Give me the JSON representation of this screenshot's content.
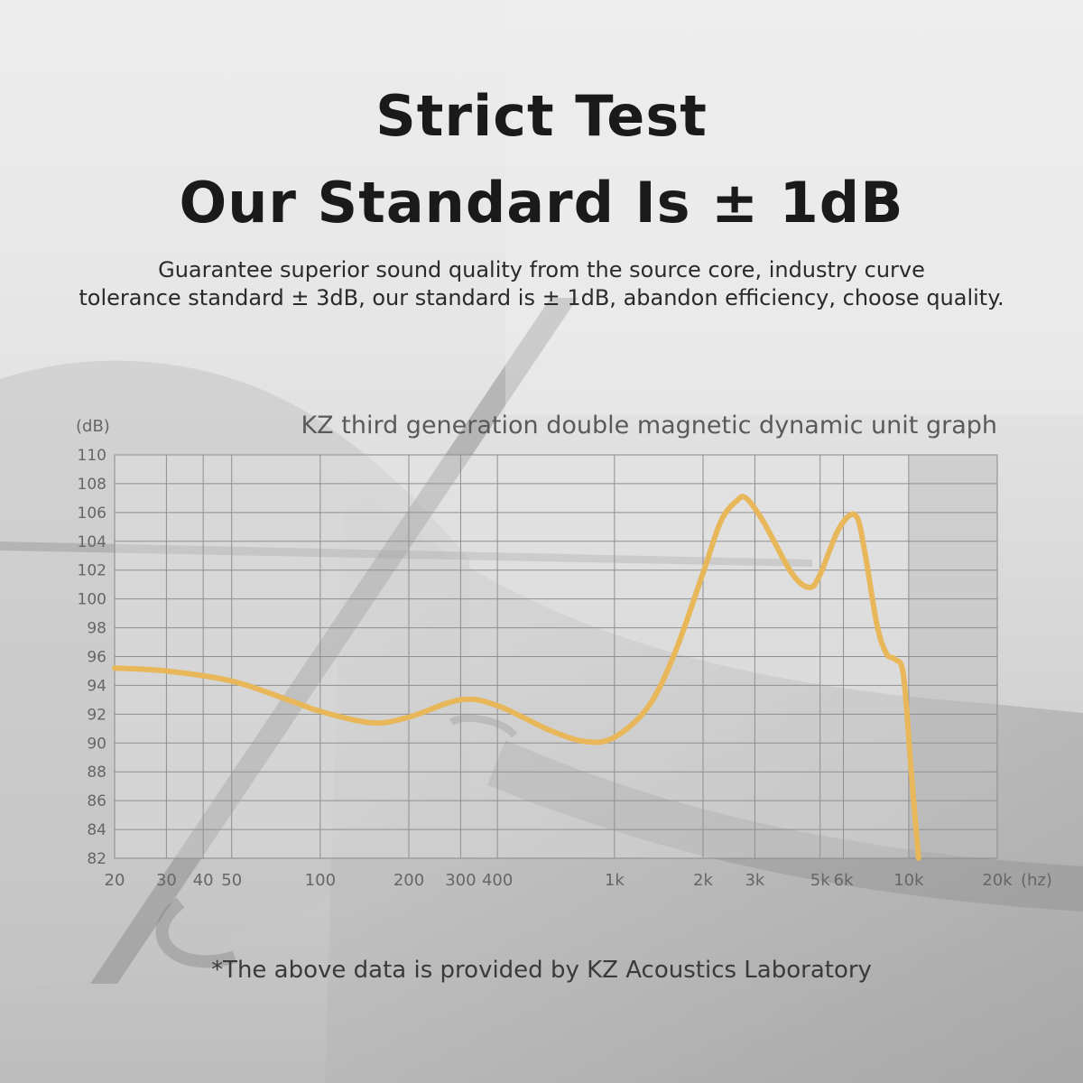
{
  "header": {
    "title_line1": "Strict Test",
    "title_line2": "Our Standard Is ± 1dB",
    "subtitle_line1": "Guarantee superior sound quality from the source core, industry curve",
    "subtitle_line2": "tolerance standard ± 3dB, our standard is ± 1dB, abandon efficiency, choose quality."
  },
  "footnote": "*The above data is provided by KZ Acoustics Laboratory",
  "chart_data": {
    "type": "line",
    "title": "KZ third generation double magnetic dynamic unit graph",
    "y_unit_label": "(dB)",
    "x_unit_label": "(hz)",
    "x_scale": "log",
    "xlim": [
      20,
      20000
    ],
    "ylim": [
      82,
      110
    ],
    "y_ticks": [
      82,
      84,
      86,
      88,
      90,
      92,
      94,
      96,
      98,
      100,
      102,
      104,
      106,
      108,
      110
    ],
    "x_ticks": [
      {
        "value": 20,
        "label": "20"
      },
      {
        "value": 30,
        "label": "30"
      },
      {
        "value": 40,
        "label": "40"
      },
      {
        "value": 50,
        "label": "50"
      },
      {
        "value": 100,
        "label": "100"
      },
      {
        "value": 200,
        "label": "200"
      },
      {
        "value": 300,
        "label": "300"
      },
      {
        "value": 400,
        "label": "400"
      },
      {
        "value": 1000,
        "label": "1k"
      },
      {
        "value": 2000,
        "label": "2k"
      },
      {
        "value": 3000,
        "label": "3k"
      },
      {
        "value": 5000,
        "label": "5k"
      },
      {
        "value": 6000,
        "label": "6k"
      },
      {
        "value": 10000,
        "label": "10k"
      },
      {
        "value": 20000,
        "label": "20k"
      }
    ],
    "grid": true,
    "shaded_band": [
      10000,
      20000
    ],
    "line_color": "#e8b75a",
    "series": [
      {
        "x": [
          20,
          30,
          50,
          80,
          100,
          150,
          200,
          300,
          400,
          600,
          800,
          1000,
          1300,
          1600,
          2000,
          2300,
          2600,
          2800,
          3200,
          4000,
          4600,
          5000,
          5800,
          6600,
          7100,
          7800,
          8400,
          9000,
          9600,
          10200,
          10800
        ],
        "y": [
          95.2,
          95.0,
          94.3,
          92.9,
          92.2,
          91.4,
          91.8,
          93.0,
          92.6,
          90.9,
          90.1,
          90.4,
          92.5,
          96.2,
          101.8,
          105.4,
          106.8,
          107.0,
          105.4,
          101.8,
          100.8,
          101.7,
          104.9,
          105.8,
          103.2,
          98.2,
          96.2,
          95.8,
          94.7,
          88.0,
          82.0
        ]
      }
    ]
  }
}
